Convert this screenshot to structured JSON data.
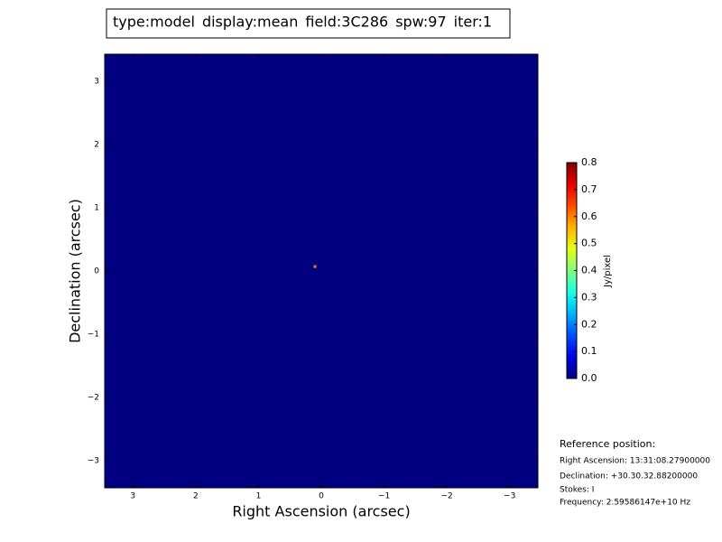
{
  "chart_data": {
    "type": "image",
    "header": [
      {
        "text": "type:model",
        "color": "#000000"
      },
      {
        "text": "display:mean",
        "color": "#ff0000"
      },
      {
        "text": "field:3C286",
        "color": "#000000"
      },
      {
        "text": "spw:97",
        "color": "#000000"
      },
      {
        "text": "iter:1",
        "color": "#000000"
      }
    ],
    "x_label": "Right Ascension (arcsec)",
    "y_label": "Declination (arcsec)",
    "xlim": [
      3.45,
      -3.45
    ],
    "ylim": [
      -3.43,
      3.43
    ],
    "xticks": [
      3,
      2,
      1,
      0,
      {
        "value": -1,
        "label": "−1"
      },
      {
        "value": -2,
        "label": "−2"
      },
      {
        "value": -3,
        "label": "−3"
      }
    ],
    "yticks": [
      {
        "value": -3,
        "label": "−3"
      },
      {
        "value": -2,
        "label": "−2"
      },
      {
        "value": -1,
        "label": "−1"
      },
      0,
      1,
      2,
      3
    ],
    "colormap": "jet",
    "points": [
      {
        "x": 0.1,
        "y": 0.07,
        "value": 0.6
      }
    ],
    "clim": [
      0,
      0.8
    ],
    "cticks": [
      {
        "value": 0,
        "label": "0.0"
      },
      0.1,
      0.2,
      0.3,
      0.4,
      0.5,
      0.6,
      0.7,
      0.8
    ],
    "colorbar_label": "Jy/pixel",
    "reference": {
      "title": "Reference position:",
      "lines": [
        "Right Ascension: 13:31:08.27900000",
        "Declination: +30.30.32.88200000",
        "Stokes: I",
        "Frequency: 2.59586147e+10 Hz"
      ]
    }
  }
}
